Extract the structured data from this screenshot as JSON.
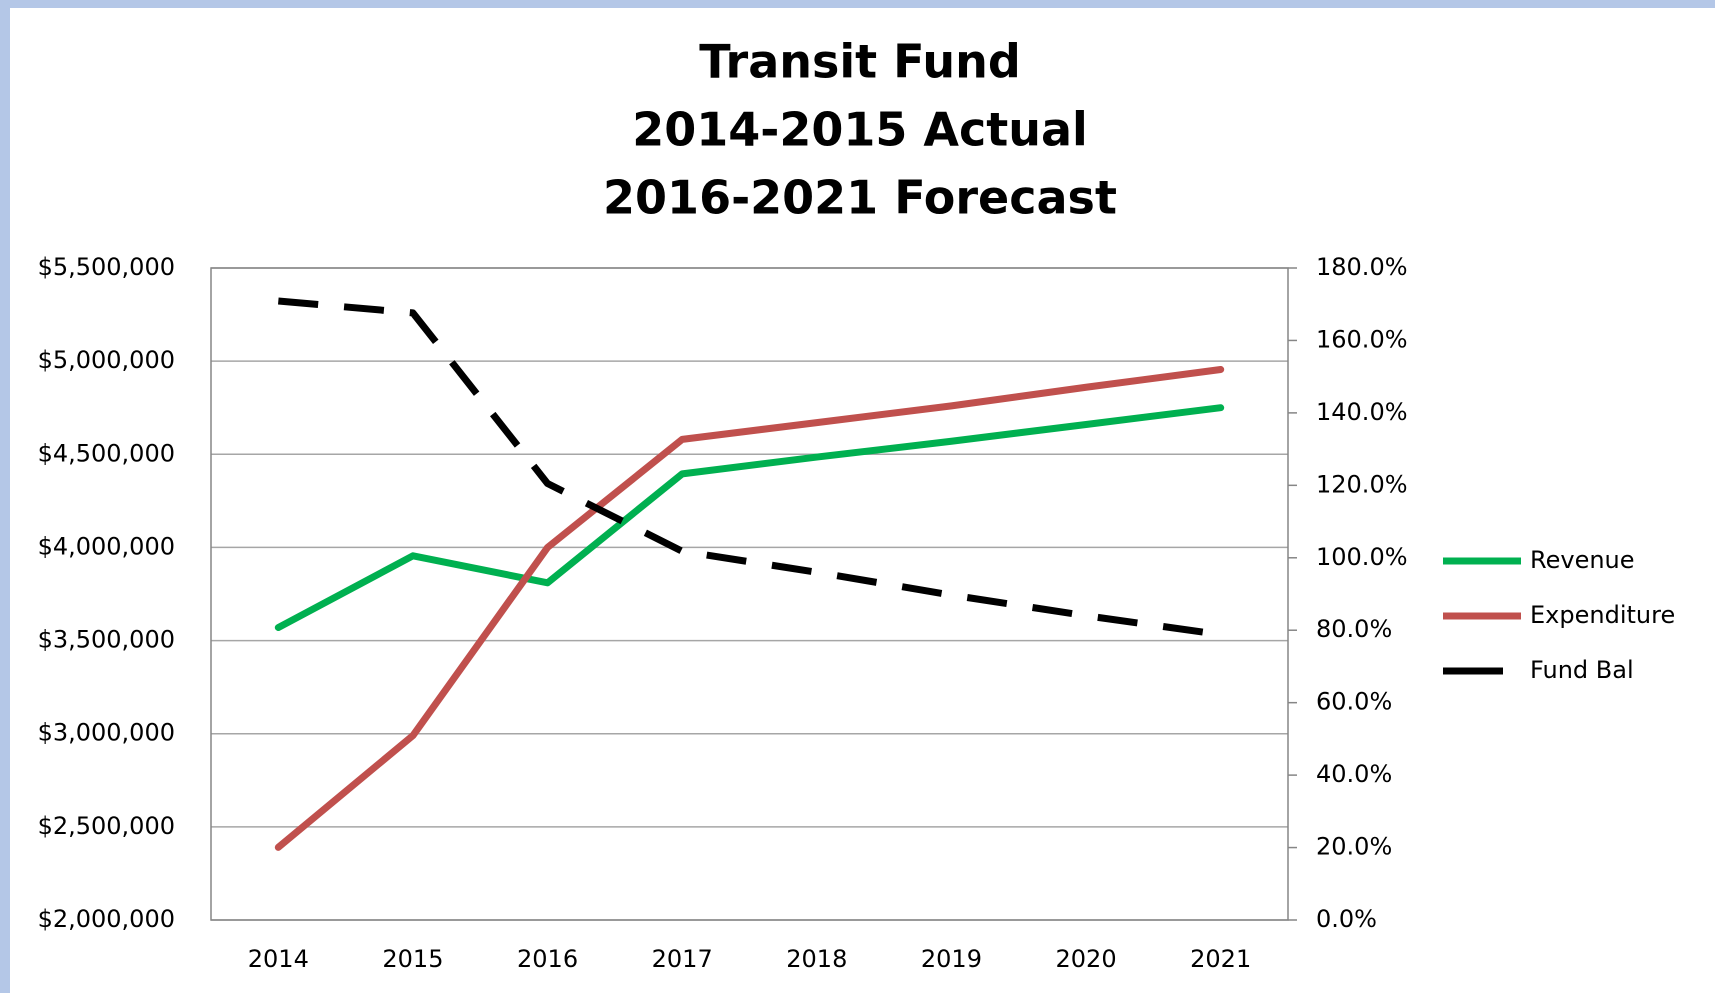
{
  "chart_data": {
    "type": "line",
    "title": [
      "Transit Fund",
      "2014-2015 Actual",
      "2016-2021 Forecast"
    ],
    "categories": [
      "2014",
      "2015",
      "2016",
      "2017",
      "2018",
      "2019",
      "2020",
      "2021"
    ],
    "series": [
      {
        "name": "Revenue",
        "color": "#00b050",
        "values": [
          3570000,
          3955000,
          3810000,
          4395000,
          4485000,
          4570000,
          4660000,
          4750000
        ]
      },
      {
        "name": "Expenditure",
        "color": "#c0504d",
        "values": [
          2390000,
          2990000,
          4000000,
          4580000,
          4670000,
          4760000,
          4860000,
          4955000
        ]
      },
      {
        "name": "Fund Bal",
        "color": "#000000",
        "dashed": true,
        "axis": "y2",
        "values": [
          170.9,
          167.6,
          120.5,
          101.8,
          96.0,
          89.7,
          84.0,
          78.8
        ]
      }
    ],
    "ylim": [
      2000000,
      5500000
    ],
    "yticks": [
      {
        "value": 2000000,
        "label": "$2,000,000"
      },
      {
        "value": 2500000,
        "label": "$2,500,000"
      },
      {
        "value": 3000000,
        "label": "$3,000,000"
      },
      {
        "value": 3500000,
        "label": "$3,500,000"
      },
      {
        "value": 4000000,
        "label": "$4,000,000"
      },
      {
        "value": 4500000,
        "label": "$4,500,000"
      },
      {
        "value": 5000000,
        "label": "$5,000,000"
      },
      {
        "value": 5500000,
        "label": "$5,500,000"
      }
    ],
    "y2lim": [
      0,
      180
    ],
    "y2ticks": [
      {
        "value": 0,
        "label": "0.0%"
      },
      {
        "value": 20,
        "label": "20.0%"
      },
      {
        "value": 40,
        "label": "40.0%"
      },
      {
        "value": 60,
        "label": "60.0%"
      },
      {
        "value": 80,
        "label": "80.0%"
      },
      {
        "value": 100,
        "label": "100.0%"
      },
      {
        "value": 120,
        "label": "120.0%"
      },
      {
        "value": 140,
        "label": "140.0%"
      },
      {
        "value": 160,
        "label": "160.0%"
      },
      {
        "value": 180,
        "label": "180.0%"
      }
    ],
    "grid": true,
    "legend": "right"
  }
}
